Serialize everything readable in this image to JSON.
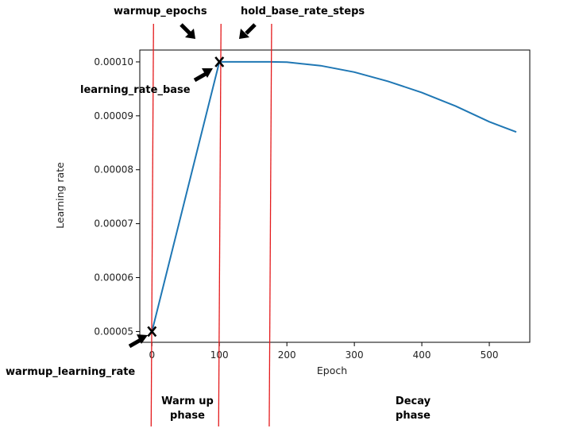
{
  "chart_data": {
    "type": "line",
    "xlabel": "Epoch",
    "ylabel": "Learning rate",
    "xlim": [
      -18,
      560
    ],
    "ylim": [
      4.8e-05,
      0.0001022
    ],
    "x_ticks": [
      0,
      100,
      200,
      300,
      400,
      500
    ],
    "x_tick_labels": [
      "0",
      "100",
      "200",
      "300",
      "400",
      "500"
    ],
    "y_ticks": [
      5e-05,
      6e-05,
      7e-05,
      8e-05,
      9e-05,
      0.0001
    ],
    "y_tick_labels": [
      "0.00005",
      "0.00006",
      "0.00007",
      "0.00008",
      "0.00009",
      "0.00010"
    ],
    "grid": false,
    "line_color": "#1f77b4",
    "series": [
      {
        "x": [
          0,
          100,
          175,
          200,
          250,
          300,
          350,
          400,
          450,
          500,
          540
        ],
        "values": [
          5e-05,
          0.0001,
          0.0001,
          9.995e-05,
          9.93e-05,
          9.81e-05,
          9.64e-05,
          9.43e-05,
          9.18e-05,
          8.89e-05,
          8.7e-05
        ]
      }
    ],
    "markers": [
      {
        "x": 0,
        "y": 5e-05,
        "symbol": "X"
      },
      {
        "x": 100,
        "y": 0.0001,
        "symbol": "X"
      }
    ],
    "vertical_lines": {
      "color": "#e41a1c",
      "x": [
        0,
        100,
        175
      ]
    },
    "annotations": {
      "warmup_epochs": "warmup_epochs",
      "hold_base_rate_steps": "hold_base_rate_steps",
      "learning_rate_base": "learning_rate_base",
      "warmup_learning_rate": "warmup_learning_rate"
    },
    "phases": {
      "warmup": [
        "Warm up",
        "phase"
      ],
      "decay": [
        "Decay",
        "phase"
      ]
    }
  }
}
